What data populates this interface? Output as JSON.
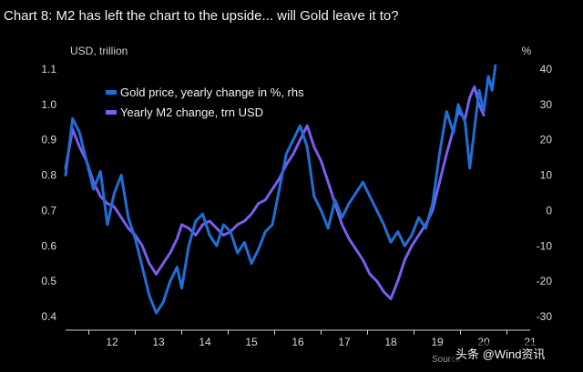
{
  "chart_data": {
    "type": "line",
    "title": "Chart 8: M2 has left the chart to the upside... will Gold leave it to?",
    "left_axis_unit": "USD, trillion",
    "right_axis_unit": "%",
    "ylim_left": [
      0.4,
      1.1
    ],
    "ylim_right": [
      -30,
      40
    ],
    "xlim": [
      2011.5,
      2021.5
    ],
    "left_ticks": [
      "0.4",
      "0.5",
      "0.6",
      "0.7",
      "0.8",
      "0.9",
      "1.0",
      "1.1"
    ],
    "right_ticks": [
      "-30",
      "-20",
      "-10",
      "0",
      "10",
      "20",
      "30",
      "40"
    ],
    "x_ticks": [
      "12",
      "13",
      "14",
      "15",
      "16",
      "17",
      "18",
      "19",
      "20",
      "21"
    ],
    "legend_position": "top-left",
    "grid": false,
    "series": [
      {
        "name": "Gold price, yearly change in %, rhs",
        "axis": "right",
        "color": "#1f6fd6",
        "points": [
          [
            2011.5,
            10
          ],
          [
            2011.65,
            26
          ],
          [
            2011.8,
            22
          ],
          [
            2011.95,
            14
          ],
          [
            2012.1,
            6
          ],
          [
            2012.25,
            11
          ],
          [
            2012.4,
            -4
          ],
          [
            2012.55,
            5
          ],
          [
            2012.7,
            10
          ],
          [
            2012.85,
            -2
          ],
          [
            2013.0,
            -8
          ],
          [
            2013.15,
            -16
          ],
          [
            2013.3,
            -24
          ],
          [
            2013.45,
            -29
          ],
          [
            2013.6,
            -26
          ],
          [
            2013.75,
            -20
          ],
          [
            2013.9,
            -16
          ],
          [
            2014.0,
            -22
          ],
          [
            2014.15,
            -10
          ],
          [
            2014.3,
            -3
          ],
          [
            2014.45,
            -1
          ],
          [
            2014.6,
            -7
          ],
          [
            2014.75,
            -10
          ],
          [
            2014.9,
            -4
          ],
          [
            2015.05,
            -6
          ],
          [
            2015.2,
            -12
          ],
          [
            2015.35,
            -9
          ],
          [
            2015.5,
            -15
          ],
          [
            2015.65,
            -11
          ],
          [
            2015.8,
            -6
          ],
          [
            2015.95,
            -4
          ],
          [
            2016.1,
            6
          ],
          [
            2016.25,
            16
          ],
          [
            2016.4,
            20
          ],
          [
            2016.55,
            24
          ],
          [
            2016.7,
            18
          ],
          [
            2016.85,
            4
          ],
          [
            2017.0,
            0
          ],
          [
            2017.15,
            -5
          ],
          [
            2017.3,
            3
          ],
          [
            2017.45,
            -2
          ],
          [
            2017.6,
            2
          ],
          [
            2017.75,
            5
          ],
          [
            2017.9,
            8
          ],
          [
            2018.05,
            4
          ],
          [
            2018.2,
            0
          ],
          [
            2018.35,
            -4
          ],
          [
            2018.5,
            -9
          ],
          [
            2018.65,
            -6
          ],
          [
            2018.8,
            -10
          ],
          [
            2018.95,
            -7
          ],
          [
            2019.1,
            -2
          ],
          [
            2019.25,
            -5
          ],
          [
            2019.4,
            2
          ],
          [
            2019.55,
            16
          ],
          [
            2019.7,
            28
          ],
          [
            2019.85,
            22
          ],
          [
            2019.95,
            30
          ],
          [
            2020.1,
            25
          ],
          [
            2020.2,
            12
          ],
          [
            2020.3,
            23
          ],
          [
            2020.4,
            34
          ],
          [
            2020.5,
            28
          ],
          [
            2020.6,
            38
          ],
          [
            2020.68,
            34
          ],
          [
            2020.75,
            41
          ]
        ]
      },
      {
        "name": "Yearly M2 change, trn USD",
        "axis": "left",
        "color": "#7b5cf0",
        "points": [
          [
            2011.5,
            0.82
          ],
          [
            2011.65,
            0.93
          ],
          [
            2011.8,
            0.88
          ],
          [
            2011.95,
            0.84
          ],
          [
            2012.1,
            0.78
          ],
          [
            2012.25,
            0.74
          ],
          [
            2012.4,
            0.72
          ],
          [
            2012.55,
            0.71
          ],
          [
            2012.7,
            0.68
          ],
          [
            2012.85,
            0.65
          ],
          [
            2013.0,
            0.63
          ],
          [
            2013.15,
            0.6
          ],
          [
            2013.3,
            0.55
          ],
          [
            2013.45,
            0.52
          ],
          [
            2013.6,
            0.55
          ],
          [
            2013.75,
            0.58
          ],
          [
            2013.9,
            0.62
          ],
          [
            2014.0,
            0.66
          ],
          [
            2014.15,
            0.65
          ],
          [
            2014.3,
            0.63
          ],
          [
            2014.45,
            0.66
          ],
          [
            2014.6,
            0.67
          ],
          [
            2014.75,
            0.65
          ],
          [
            2014.9,
            0.63
          ],
          [
            2015.05,
            0.64
          ],
          [
            2015.2,
            0.66
          ],
          [
            2015.35,
            0.67
          ],
          [
            2015.5,
            0.69
          ],
          [
            2015.65,
            0.72
          ],
          [
            2015.8,
            0.73
          ],
          [
            2015.95,
            0.76
          ],
          [
            2016.1,
            0.79
          ],
          [
            2016.25,
            0.83
          ],
          [
            2016.4,
            0.86
          ],
          [
            2016.55,
            0.9
          ],
          [
            2016.7,
            0.94
          ],
          [
            2016.85,
            0.88
          ],
          [
            2017.0,
            0.84
          ],
          [
            2017.15,
            0.78
          ],
          [
            2017.3,
            0.72
          ],
          [
            2017.45,
            0.66
          ],
          [
            2017.6,
            0.62
          ],
          [
            2017.75,
            0.59
          ],
          [
            2017.9,
            0.56
          ],
          [
            2018.05,
            0.52
          ],
          [
            2018.2,
            0.5
          ],
          [
            2018.35,
            0.47
          ],
          [
            2018.5,
            0.45
          ],
          [
            2018.65,
            0.5
          ],
          [
            2018.8,
            0.56
          ],
          [
            2018.95,
            0.6
          ],
          [
            2019.1,
            0.63
          ],
          [
            2019.25,
            0.66
          ],
          [
            2019.4,
            0.7
          ],
          [
            2019.55,
            0.78
          ],
          [
            2019.7,
            0.86
          ],
          [
            2019.85,
            0.93
          ],
          [
            2019.95,
            0.98
          ],
          [
            2020.1,
            0.96
          ],
          [
            2020.2,
            1.02
          ],
          [
            2020.3,
            1.05
          ],
          [
            2020.4,
            1.0
          ],
          [
            2020.5,
            0.97
          ]
        ]
      }
    ]
  },
  "footer": {
    "source_label": "Source",
    "watermark": "头条 @Wind资讯"
  }
}
